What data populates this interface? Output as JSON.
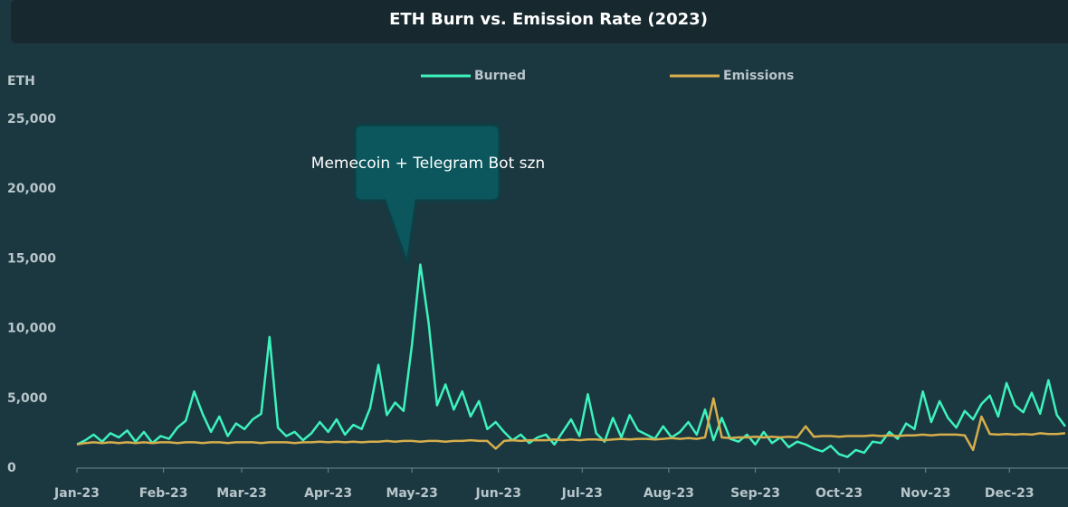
{
  "chart_data": {
    "type": "line",
    "title": "ETH Burn vs. Emission Rate (2023)",
    "y_label": "ETH",
    "annotation": "Memecoin + Telegram Bot szn",
    "x": [
      0,
      3,
      6,
      9,
      12,
      15,
      18,
      21,
      24,
      27,
      30,
      33,
      36,
      39,
      42,
      45,
      48,
      51,
      54,
      57,
      60,
      63,
      66,
      69,
      72,
      75,
      78,
      81,
      84,
      87,
      90,
      93,
      96,
      99,
      102,
      105,
      108,
      111,
      114,
      117,
      120,
      123,
      126,
      129,
      132,
      135,
      138,
      141,
      144,
      147,
      150,
      153,
      156,
      159,
      162,
      165,
      168,
      171,
      174,
      177,
      180,
      183,
      186,
      189,
      192,
      195,
      198,
      201,
      204,
      207,
      210,
      213,
      216,
      219,
      222,
      225,
      228,
      231,
      234,
      237,
      240,
      243,
      246,
      249,
      252,
      255,
      258,
      261,
      264,
      267,
      270,
      273,
      276,
      279,
      282,
      285,
      288,
      291,
      294,
      297,
      300,
      303,
      306,
      309,
      312,
      315,
      318,
      321,
      324,
      327,
      330,
      333,
      336,
      339,
      342,
      345,
      348,
      351,
      354
    ],
    "series": [
      {
        "name": "Burned",
        "color": "#3df2bd",
        "values": [
          1700,
          2000,
          2400,
          1900,
          2500,
          2200,
          2700,
          1900,
          2600,
          1800,
          2300,
          2100,
          2900,
          3400,
          5500,
          3900,
          2600,
          3700,
          2300,
          3200,
          2800,
          3500,
          3900,
          9400,
          2900,
          2300,
          2600,
          2000,
          2500,
          3300,
          2600,
          3500,
          2400,
          3100,
          2800,
          4300,
          7400,
          3800,
          4700,
          4100,
          8800,
          14600,
          10400,
          4500,
          6000,
          4200,
          5500,
          3700,
          4800,
          2800,
          3300,
          2600,
          2000,
          2400,
          1800,
          2200,
          2400,
          1700,
          2600,
          3500,
          2300,
          5300,
          2500,
          1900,
          3600,
          2200,
          3800,
          2700,
          2400,
          2100,
          3000,
          2200,
          2600,
          3300,
          2400,
          4200,
          2000,
          3600,
          2100,
          1900,
          2400,
          1700,
          2600,
          1800,
          2200,
          1500,
          1900,
          1700,
          1400,
          1200,
          1600,
          1000,
          800,
          1300,
          1100,
          1900,
          1800,
          2600,
          2100,
          3200,
          2800,
          5500,
          3300,
          4800,
          3600,
          2900,
          4100,
          3500,
          4600,
          5200,
          3700,
          6100,
          4500,
          4000,
          5400,
          3900,
          6300,
          3800,
          3000
        ]
      },
      {
        "name": "Emissions",
        "color": "#d6ae4c",
        "values": [
          1700,
          1800,
          1850,
          1800,
          1850,
          1800,
          1850,
          1800,
          1850,
          1800,
          1850,
          1850,
          1800,
          1850,
          1850,
          1800,
          1850,
          1850,
          1800,
          1850,
          1850,
          1850,
          1800,
          1850,
          1850,
          1850,
          1800,
          1850,
          1850,
          1900,
          1850,
          1900,
          1850,
          1900,
          1850,
          1900,
          1900,
          1950,
          1900,
          1950,
          1950,
          1900,
          1950,
          1950,
          1900,
          1950,
          1950,
          2000,
          1950,
          1950,
          1400,
          1950,
          2000,
          1950,
          2000,
          2000,
          2000,
          2050,
          2000,
          2050,
          2000,
          2050,
          2050,
          2000,
          2050,
          2100,
          2050,
          2100,
          2100,
          2050,
          2100,
          2150,
          2100,
          2150,
          2100,
          2200,
          5000,
          2200,
          2150,
          2200,
          2200,
          2250,
          2200,
          2250,
          2200,
          2250,
          2200,
          3000,
          2250,
          2300,
          2300,
          2250,
          2300,
          2300,
          2300,
          2350,
          2300,
          2350,
          2300,
          2350,
          2350,
          2400,
          2350,
          2400,
          2400,
          2400,
          2350,
          1300,
          3700,
          2450,
          2400,
          2450,
          2400,
          2450,
          2400,
          2500,
          2450,
          2450,
          2500
        ]
      }
    ],
    "xlim": [
      0,
      355
    ],
    "xticks": [
      {
        "value": 0,
        "label": "Jan-23"
      },
      {
        "value": 31,
        "label": "Feb-23"
      },
      {
        "value": 59,
        "label": "Mar-23"
      },
      {
        "value": 90,
        "label": "Apr-23"
      },
      {
        "value": 120,
        "label": "May-23"
      },
      {
        "value": 151,
        "label": "Jun-23"
      },
      {
        "value": 181,
        "label": "Jul-23"
      },
      {
        "value": 212,
        "label": "Aug-23"
      },
      {
        "value": 243,
        "label": "Sep-23"
      },
      {
        "value": 273,
        "label": "Oct-23"
      },
      {
        "value": 304,
        "label": "Nov-23"
      },
      {
        "value": 334,
        "label": "Dec-23"
      }
    ],
    "ylim": [
      0,
      25000
    ],
    "yticks": [
      0,
      {
        "value": 5000,
        "label": "5,000"
      },
      {
        "value": 10000,
        "label": "10,000"
      },
      {
        "value": 15000,
        "label": "15,000"
      },
      {
        "value": 20000,
        "label": "20,000"
      },
      {
        "value": 25000,
        "label": "25,000"
      }
    ],
    "grid": false,
    "legend": "top"
  }
}
